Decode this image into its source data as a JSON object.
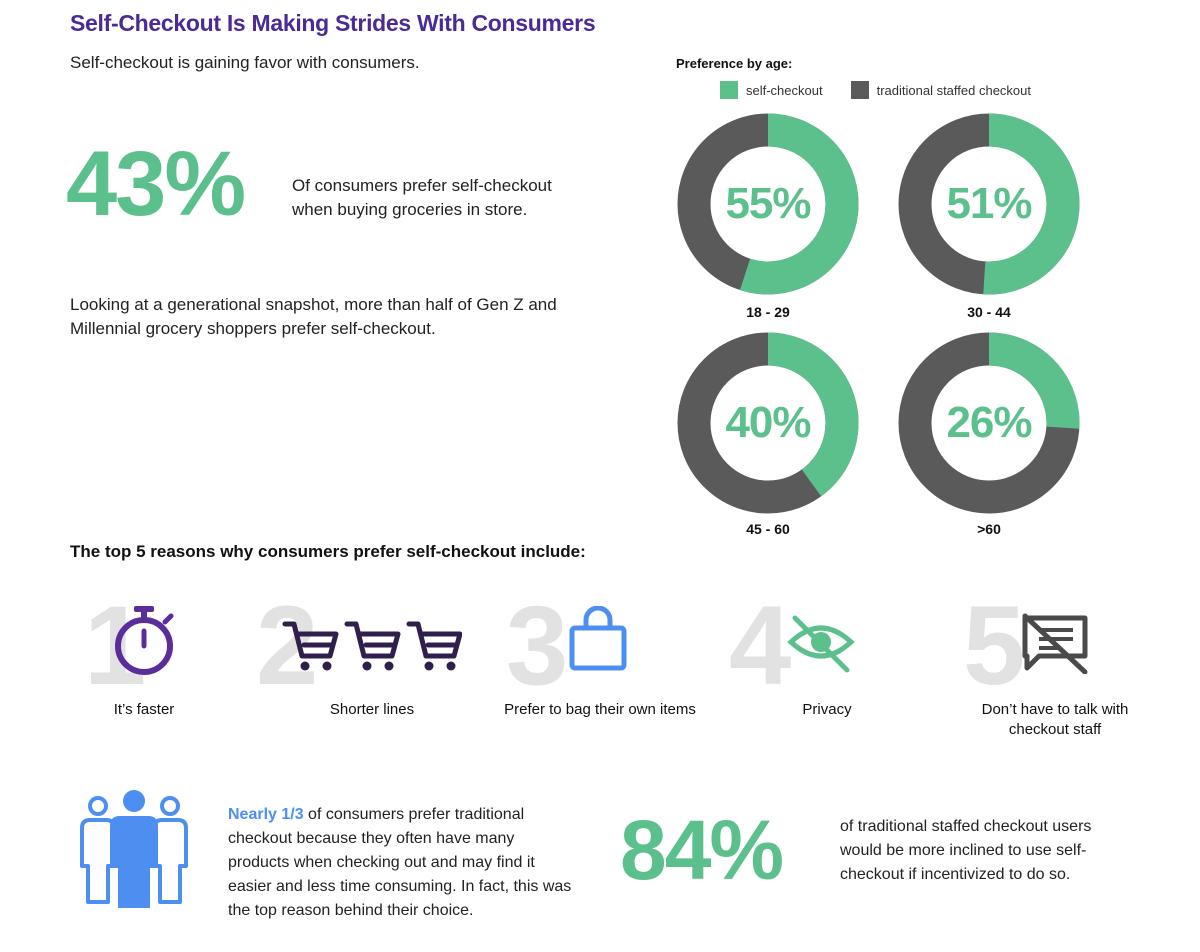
{
  "title": "Self-Checkout Is Making Strides With Consumers",
  "subtitle": "Self-checkout is gaining favor with consumers.",
  "stat_main": {
    "value": "43%",
    "text": "Of consumers prefer self-checkout when buying groceries in store."
  },
  "generational_text": "Looking at a generational snapshot, more than half of Gen Z and Millennial grocery shoppers prefer self-checkout.",
  "colors": {
    "self_checkout": "#5cc08c",
    "traditional": "#5a5a5a",
    "title": "#4b2a96",
    "highlight": "#4c8ff0",
    "icon_purple": "#5b2d9b",
    "icon_blue": "#4c8ff0",
    "icon_green": "#5cc08c",
    "icon_gray": "#4a4a4a"
  },
  "chart_data": {
    "type": "pie",
    "title": "Preference by age:",
    "legend": [
      "self-checkout",
      "traditional staffed checkout"
    ],
    "legend_position": "top",
    "categories": [
      "18 - 29",
      "30 - 44",
      "45 - 60",
      ">60"
    ],
    "series": [
      {
        "name": "self-checkout",
        "values": [
          55,
          51,
          40,
          26
        ]
      },
      {
        "name": "traditional staffed checkout",
        "values": [
          45,
          49,
          60,
          74
        ]
      }
    ],
    "labels": [
      "55%",
      "51%",
      "40%",
      "26%"
    ]
  },
  "reasons_title": "The top 5 reasons why consumers prefer self-checkout include:",
  "reasons": [
    {
      "number": "1",
      "label": "It’s faster",
      "icon": "stopwatch-icon"
    },
    {
      "number": "2",
      "label": "Shorter lines",
      "icon": "shopping-cart-icon"
    },
    {
      "number": "3",
      "label": "Prefer to bag their own items",
      "icon": "shopping-bag-icon"
    },
    {
      "number": "4",
      "label": "Privacy",
      "icon": "eye-slash-icon"
    },
    {
      "number": "5",
      "label": "Don’t have to talk with checkout staff",
      "icon": "no-chat-icon"
    }
  ],
  "nearly": {
    "highlight": "Nearly 1/3",
    "text": " of consumers prefer traditional checkout because they often have many products when checking out and may find it easier and less time consuming. In fact, this was the top reason behind their choice."
  },
  "stat_84": {
    "value": "84%",
    "text": "of traditional staffed checkout users would be more inclined to use self-checkout if incentivized to do so."
  }
}
